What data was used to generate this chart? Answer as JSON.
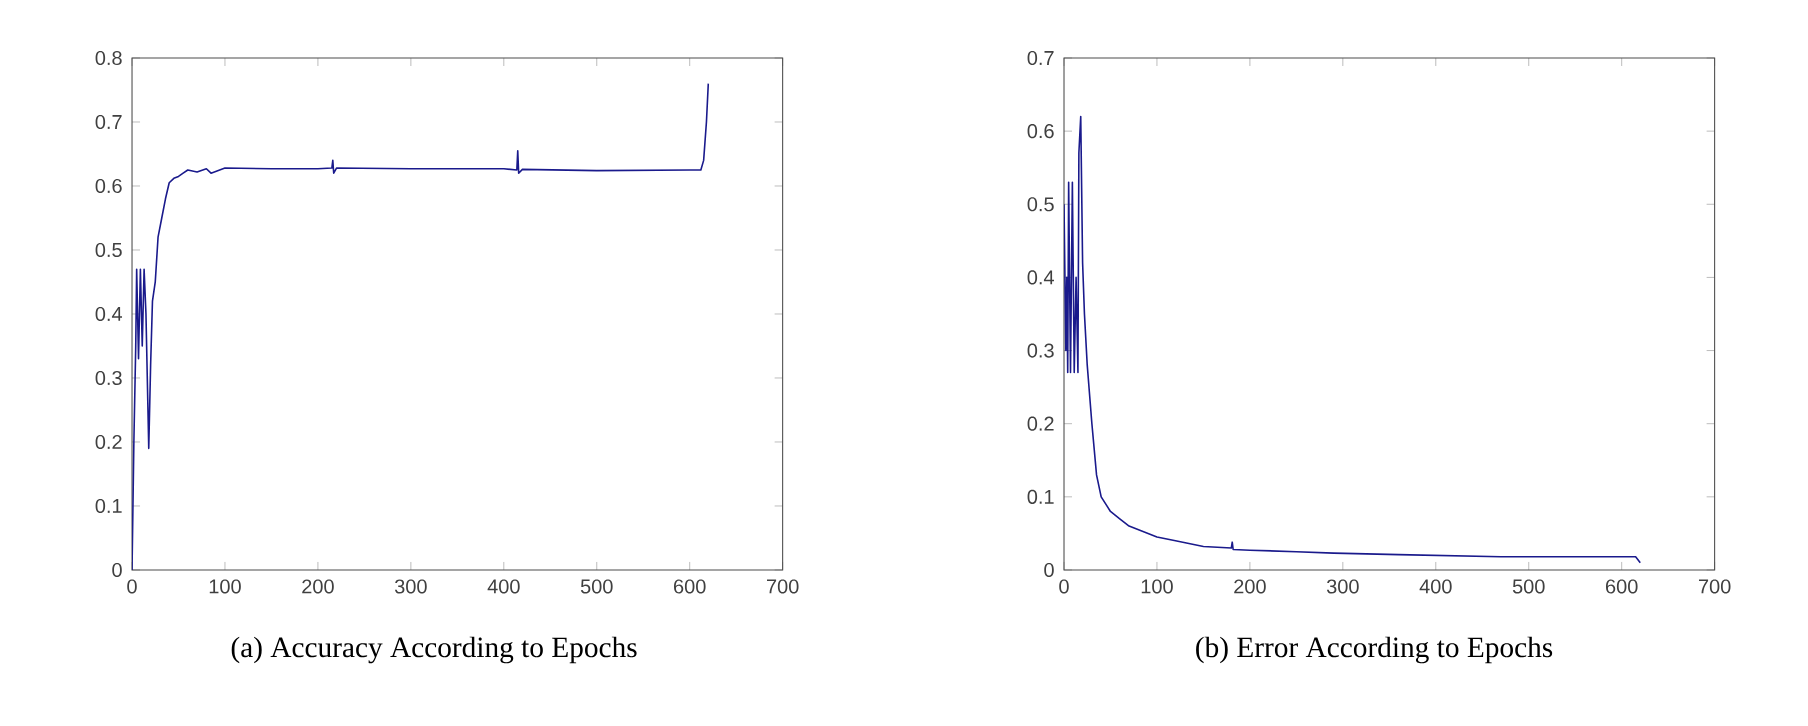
{
  "chart_data": [
    {
      "type": "line",
      "color": "#1a1a8c",
      "xlim": [
        0,
        700
      ],
      "ylim": [
        0,
        0.8
      ],
      "xticks": [
        0,
        100,
        200,
        300,
        400,
        500,
        600,
        700
      ],
      "yticks": [
        0,
        0.1,
        0.2,
        0.3,
        0.4,
        0.5,
        0.6,
        0.7,
        0.8
      ],
      "grid": false,
      "marker": "none",
      "line_style": "solid",
      "annotations": [
        "(a) Accuracy According to Epochs"
      ],
      "x": [
        0,
        2,
        4,
        5,
        7,
        9,
        11,
        13,
        15,
        17,
        18,
        20,
        22,
        25,
        28,
        32,
        36,
        40,
        45,
        50,
        55,
        60,
        70,
        80,
        85,
        100,
        150,
        200,
        215,
        216,
        217,
        220,
        300,
        400,
        414,
        415,
        416,
        420,
        500,
        600,
        612,
        615,
        618,
        620
      ],
      "values": [
        0,
        0.2,
        0.35,
        0.47,
        0.33,
        0.47,
        0.35,
        0.47,
        0.4,
        0.26,
        0.19,
        0.32,
        0.42,
        0.45,
        0.52,
        0.55,
        0.58,
        0.605,
        0.612,
        0.615,
        0.62,
        0.625,
        0.622,
        0.627,
        0.62,
        0.628,
        0.627,
        0.627,
        0.628,
        0.64,
        0.62,
        0.628,
        0.627,
        0.627,
        0.625,
        0.655,
        0.62,
        0.626,
        0.624,
        0.625,
        0.625,
        0.64,
        0.7,
        0.76
      ]
    },
    {
      "type": "line",
      "color": "#1a1a8c",
      "xlim": [
        0,
        700
      ],
      "ylim": [
        0,
        0.7
      ],
      "xticks": [
        0,
        100,
        200,
        300,
        400,
        500,
        600,
        700
      ],
      "yticks": [
        0,
        0.1,
        0.2,
        0.3,
        0.4,
        0.5,
        0.6,
        0.7
      ],
      "grid": false,
      "marker": "none",
      "line_style": "solid",
      "annotations": [
        "(b) Error According to Epochs"
      ],
      "x": [
        0,
        2,
        3,
        4,
        5,
        7,
        9,
        11,
        13,
        15,
        16,
        18,
        20,
        22,
        25,
        30,
        35,
        40,
        50,
        60,
        70,
        80,
        100,
        120,
        150,
        180,
        181,
        182,
        200,
        250,
        290,
        360,
        470,
        615,
        620
      ],
      "values": [
        0.5,
        0.3,
        0.4,
        0.27,
        0.53,
        0.27,
        0.53,
        0.27,
        0.4,
        0.27,
        0.57,
        0.62,
        0.42,
        0.35,
        0.28,
        0.2,
        0.13,
        0.1,
        0.08,
        0.07,
        0.06,
        0.055,
        0.045,
        0.04,
        0.032,
        0.03,
        0.038,
        0.028,
        0.027,
        0.025,
        0.023,
        0.021,
        0.018,
        0.018,
        0.01
      ]
    }
  ]
}
